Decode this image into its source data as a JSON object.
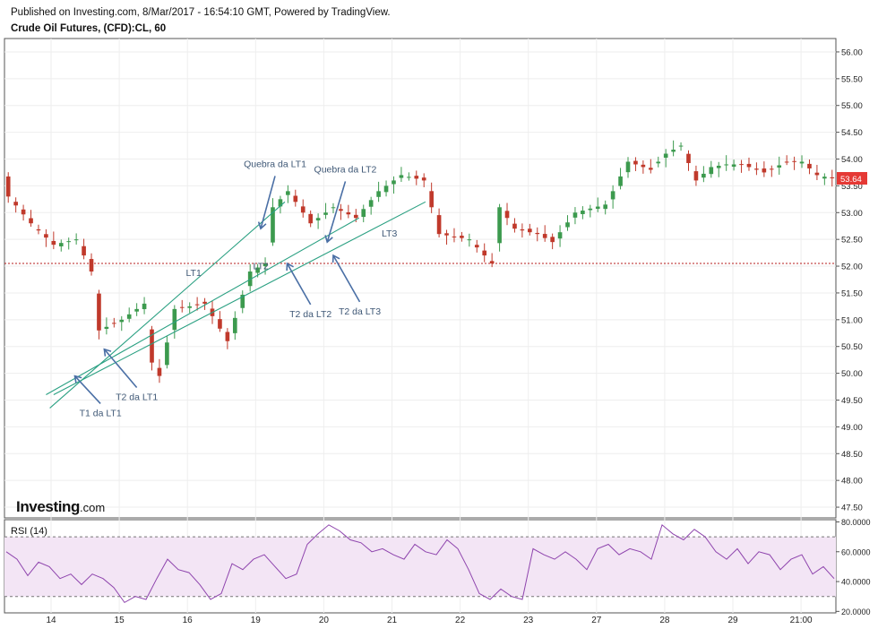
{
  "header": {
    "published": "Published on Investing.com, 8/Mar/2017 - 16:54:10 GMT, Powered by TradingView.",
    "symbol": "Crude Oil Futures, (CFD):CL, 60"
  },
  "logo": {
    "name": "Investing",
    "suffix": ".com"
  },
  "colors": {
    "up": "#3c9a4e",
    "down": "#c0392b",
    "trendline": "#2aa082",
    "arrow": "#4a6fa5",
    "annotation": "#3f5876",
    "hline": "#b71c1c",
    "rsi_line": "#8e44ad",
    "rsi_band": "#f3e5f5",
    "price_tag": "#e53935"
  },
  "chart_data": [
    {
      "type": "candlestick",
      "title": "Crude Oil Futures, (CFD):CL, 60",
      "ylim": [
        47.3,
        56.25
      ],
      "y_ticks": [
        "56.00",
        "55.50",
        "55.00",
        "54.50",
        "54.00",
        "53.50",
        "53.00",
        "52.50",
        "52.00",
        "51.50",
        "51.00",
        "50.50",
        "50.00",
        "49.50",
        "49.00",
        "48.50",
        "48.00",
        "47.50"
      ],
      "x_ticks": [
        "14",
        "15",
        "16",
        "19",
        "20",
        "21",
        "22",
        "23",
        "27",
        "28",
        "29",
        "21:00"
      ],
      "last_price": "53.64",
      "horizontal_line": 52.05,
      "price_path": [
        [
          0,
          53.3
        ],
        [
          3,
          52.8
        ],
        [
          6,
          52.4
        ],
        [
          9,
          52.5
        ],
        [
          11,
          51.9
        ],
        [
          12,
          50.8
        ],
        [
          15,
          51.0
        ],
        [
          18,
          51.3
        ],
        [
          19,
          50.2
        ],
        [
          20,
          49.95
        ],
        [
          22,
          51.2
        ],
        [
          26,
          51.3
        ],
        [
          29,
          50.6
        ],
        [
          32,
          51.9
        ],
        [
          34,
          52.05
        ],
        [
          35,
          53.1
        ],
        [
          37,
          53.4
        ],
        [
          40,
          52.8
        ],
        [
          43,
          53.1
        ],
        [
          46,
          52.9
        ],
        [
          49,
          53.4
        ],
        [
          52,
          53.7
        ],
        [
          55,
          53.6
        ],
        [
          57,
          52.6
        ],
        [
          61,
          52.5
        ],
        [
          63,
          52.2
        ],
        [
          64,
          52.05
        ],
        [
          65,
          53.1
        ],
        [
          67,
          52.7
        ],
        [
          70,
          52.6
        ],
        [
          72,
          52.45
        ],
        [
          75,
          53.0
        ],
        [
          79,
          53.15
        ],
        [
          80,
          53.4
        ],
        [
          82,
          53.95
        ],
        [
          85,
          53.8
        ],
        [
          87,
          54.1
        ],
        [
          89,
          54.25
        ],
        [
          91,
          53.6
        ],
        [
          93,
          53.85
        ],
        [
          95,
          53.9
        ],
        [
          97,
          53.9
        ],
        [
          100,
          53.75
        ],
        [
          103,
          53.95
        ],
        [
          105,
          53.95
        ],
        [
          107,
          53.7
        ],
        [
          109,
          53.64
        ]
      ],
      "trendlines": [
        {
          "name": "LT1",
          "from": [
            5.5,
            49.35
          ],
          "to": [
            36.6,
            53.2
          ]
        },
        {
          "name": "LT2",
          "from": [
            5.0,
            49.6
          ],
          "to": [
            46.4,
            52.9
          ]
        },
        {
          "name": "LT3",
          "from": [
            6.0,
            49.6
          ],
          "to": [
            55.2,
            53.2
          ]
        }
      ],
      "annotations": [
        {
          "text": "T1 da LT1",
          "point": [
            8.8,
            49.95
          ],
          "label": [
            12.2,
            49.2
          ]
        },
        {
          "text": "T2 da LT1",
          "point": [
            12.7,
            50.45
          ],
          "label": [
            17.0,
            49.5
          ]
        },
        {
          "text": "Quebra da LT1",
          "point": [
            33.4,
            52.7
          ],
          "label": [
            35.3,
            53.85
          ]
        },
        {
          "text": "Quebra da LT2",
          "point": [
            42.2,
            52.45
          ],
          "label": [
            44.6,
            53.75
          ]
        },
        {
          "text": "T2 da LT2",
          "point": [
            36.9,
            52.05
          ],
          "label": [
            40.0,
            51.05
          ]
        },
        {
          "text": "T2 da LT3",
          "point": [
            43.0,
            52.2
          ],
          "label": [
            46.5,
            51.1
          ]
        }
      ],
      "line_labels": [
        {
          "text": "LT1",
          "at": [
            23.5,
            51.82
          ]
        },
        {
          "text": "LT2",
          "at": [
            32.4,
            51.94
          ]
        },
        {
          "text": "LT3",
          "at": [
            49.4,
            52.55
          ]
        }
      ]
    },
    {
      "type": "line",
      "name": "RSI (14)",
      "ylim": [
        19,
        81.5
      ],
      "y_ticks": [
        "80.0000",
        "60.0000",
        "40.0000",
        "20.0000"
      ],
      "band": [
        30,
        70
      ],
      "values": [
        60,
        55,
        44,
        53,
        50,
        42,
        45,
        38,
        45,
        42,
        36,
        26,
        30,
        28,
        42,
        55,
        48,
        46,
        38,
        28,
        32,
        52,
        48,
        55,
        58,
        50,
        42,
        45,
        65,
        72,
        78,
        74,
        68,
        66,
        60,
        62,
        58,
        55,
        65,
        60,
        58,
        68,
        62,
        48,
        32,
        28,
        35,
        30,
        28,
        62,
        58,
        55,
        60,
        55,
        48,
        62,
        65,
        58,
        62,
        60,
        55,
        78,
        72,
        68,
        75,
        70,
        60,
        55,
        62,
        52,
        60,
        58,
        48,
        55,
        58,
        45,
        50,
        42
      ]
    }
  ]
}
